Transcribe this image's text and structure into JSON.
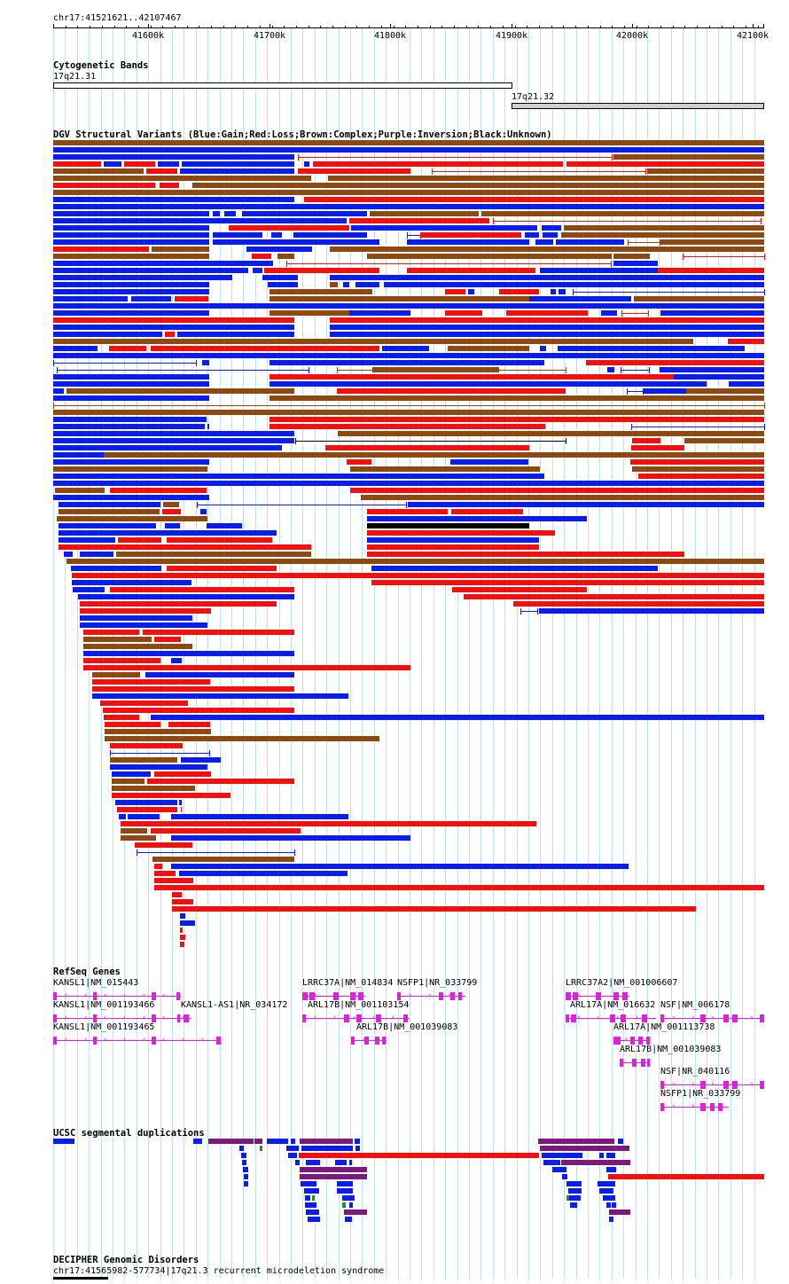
{
  "header": {
    "region": "chr17:41521621..42107467"
  },
  "ruler": {
    "ticks": [
      "41600k",
      "41700k",
      "41800k",
      "41900k",
      "42000k",
      "42100k"
    ]
  },
  "cytobands": {
    "title": "Cytogenetic Bands",
    "bands": [
      "17q21.31",
      "17q21.32"
    ]
  },
  "dgv": {
    "title": "DGV Structural Variants (Blue:Gain;Red:Loss;Brown:Complex;Purple:Inversion;Black:Unknown)"
  },
  "refseq": {
    "title": "RefSeq Genes",
    "genes": [
      "KANSL1|NM_015443",
      "KANSL1|NM_001193466",
      "KANSL1-AS1|NR_034172",
      "KANSL1|NM_001193465",
      "LRRC37A|NM_014834",
      "NSFP1|NR_033799",
      "ARL17B|NM_001103154",
      "ARL17B|NM_001039083",
      "LRRC37A2|NM_001006607",
      "ARL17A|NM_016632",
      "NSF|NM_006178",
      "ARL17A|NM_001113738",
      "ARL17B|NM_001039083",
      "NSF|NR_040116",
      "NSFP1|NR_033799"
    ]
  },
  "segdups": {
    "title": "UCSC segmental duplications"
  },
  "decipher": {
    "title": "DECIPHER Genomic Disorders",
    "item": "chr17:41565982-577734|17q21.3 recurrent microdeletion syndrome"
  },
  "colors": {
    "gain": "#0a1ee6",
    "loss": "#ee1111",
    "complex": "#8b4a14",
    "unknown": "#000000",
    "gene": "#e020e0",
    "segdup_purple": "#7a1a7a",
    "segdup_green": "#2a8a2a",
    "grid": "#bfe3ee"
  }
}
